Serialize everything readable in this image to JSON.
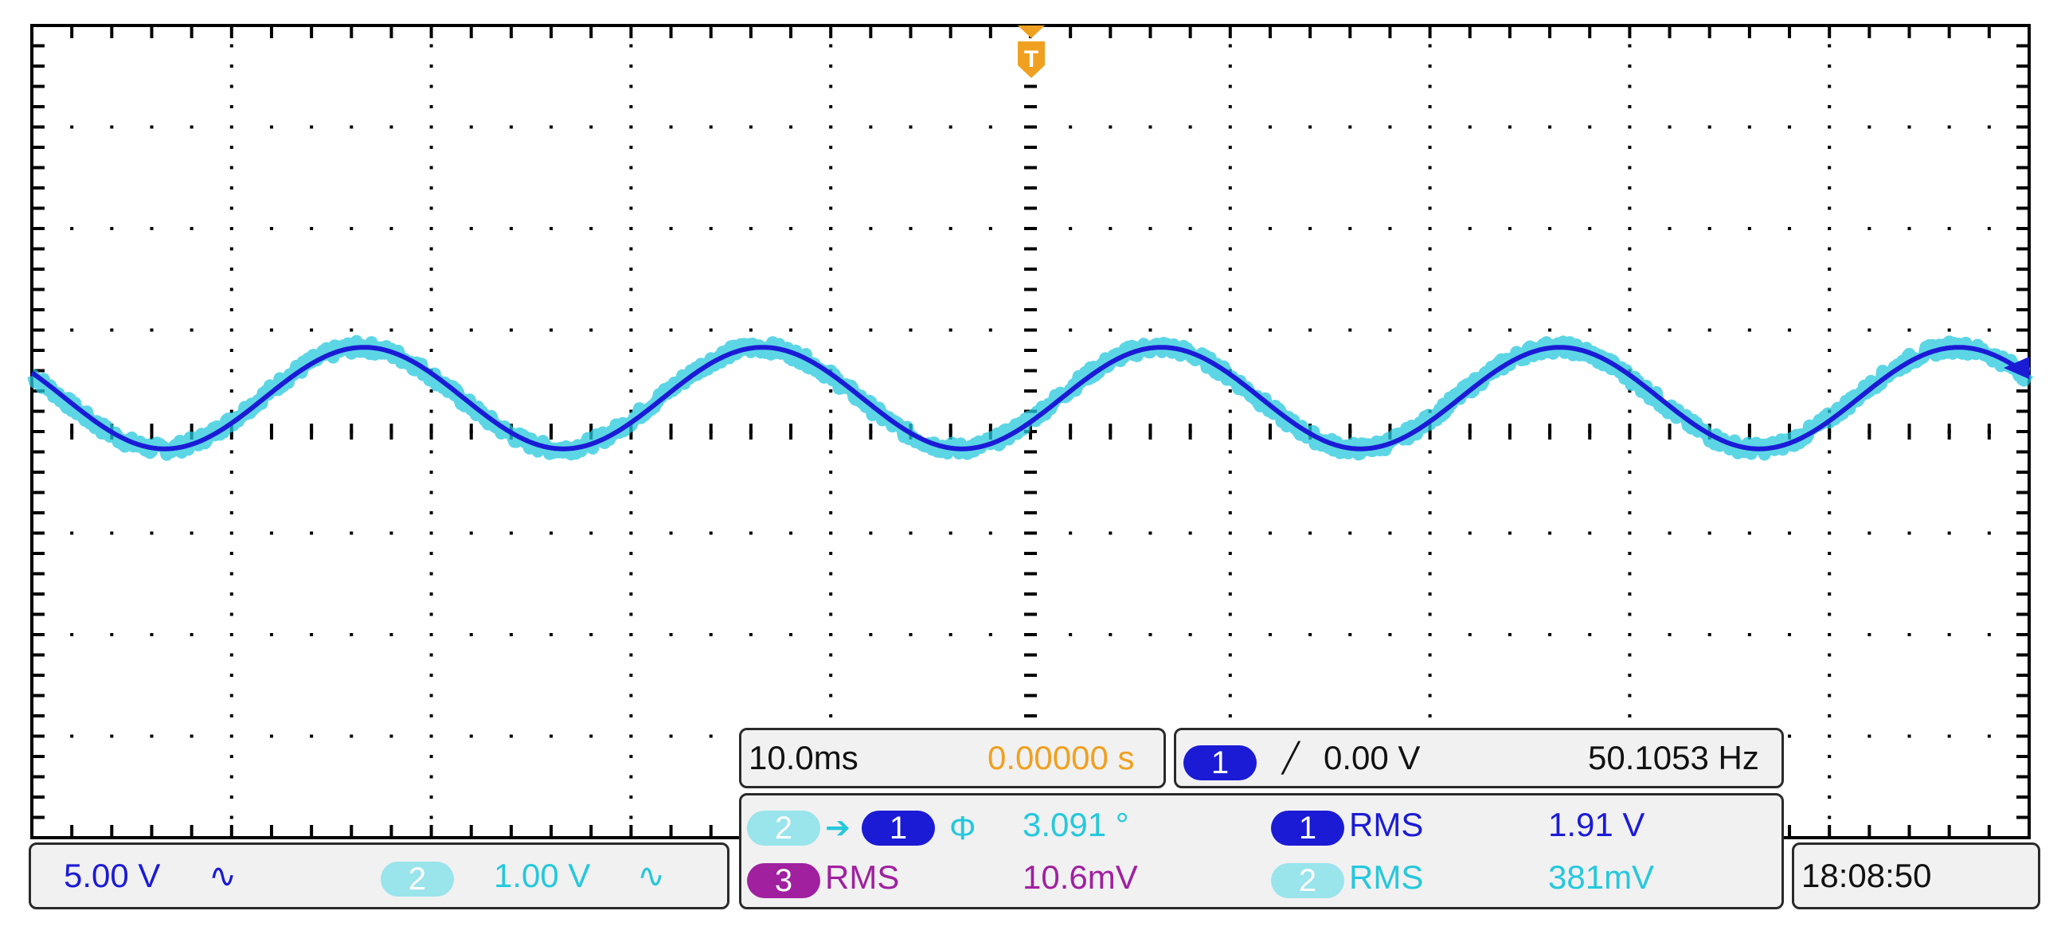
{
  "colors": {
    "ch1": "#1b1bd6",
    "ch2": "#25c8dc",
    "ch2_pill": "#9ae4ec",
    "ch3": "#a020a0",
    "trigger": "#f0a020",
    "grid": "#000000"
  },
  "trigger_marker": {
    "letter": "T"
  },
  "channel_bar": {
    "ch1_scale": "5.00 V",
    "ch1_coupling_icon": "ac-coupling-icon",
    "ch2_badge": "2",
    "ch2_scale": "1.00 V",
    "ch2_coupling_icon": "ac-coupling-icon",
    "ac_symbol": "∿"
  },
  "timebase": {
    "scale": "10.0ms",
    "position": "0.00000 s"
  },
  "trigger": {
    "source_badge": "1",
    "slope_icon": "rising-edge-icon",
    "slope_symbol": "╱",
    "level": "0.00 V",
    "frequency": "50.1053 Hz"
  },
  "measurements": {
    "phase": {
      "from_badge": "2",
      "arrow": "➔",
      "to_badge": "1",
      "phi": "Φ",
      "value": "3.091 °"
    },
    "ch1_rms": {
      "badge": "1",
      "label": "RMS",
      "value": "1.91 V"
    },
    "ch3_rms": {
      "badge": "3",
      "label": "RMS",
      "value": "10.6mV"
    },
    "ch2_rms": {
      "badge": "2",
      "label": "RMS",
      "value": "381mV"
    }
  },
  "clock": {
    "time": "18:08:50"
  },
  "chart_data": {
    "type": "line",
    "x_divisions": 10,
    "y_divisions": 8,
    "time_per_div_ms": 10.0,
    "x_range_ms": [
      -50,
      50
    ],
    "series": [
      {
        "channel": "1",
        "color": "#1b1bd6",
        "frequency_hz": 50.1053,
        "peak_divisions": 0.5,
        "offset_divisions": 0.33,
        "phase_deg_at_left": 150
      },
      {
        "channel": "2",
        "color": "#25c8dc",
        "frequency_hz": 50.1053,
        "peak_divisions": 0.5,
        "offset_divisions": 0.33,
        "phase_deg_at_left": 153.1,
        "noisy": true
      }
    ]
  }
}
